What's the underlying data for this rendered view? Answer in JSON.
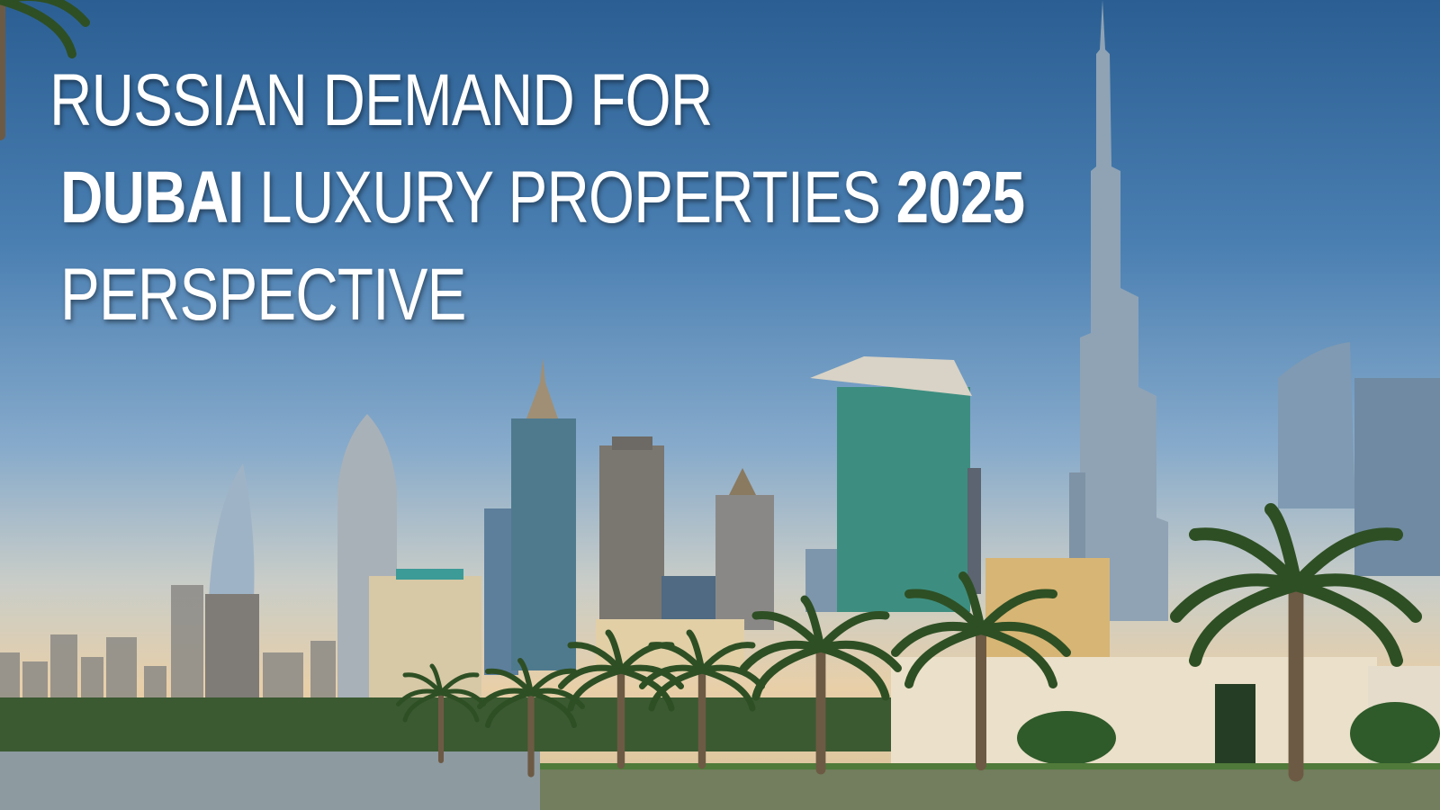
{
  "headline": {
    "line1": "RUSSIAN DEMAND FOR",
    "line2_bold_start": "DUBAI",
    "line2_middle": " LUXURY PROPERTIES ",
    "line2_bold_end": "2025",
    "line3": "PERSPECTIVE"
  },
  "colors": {
    "sky_top": "#2b5f93",
    "sky_horizon": "#e8cfa8",
    "text": "#ffffff"
  }
}
